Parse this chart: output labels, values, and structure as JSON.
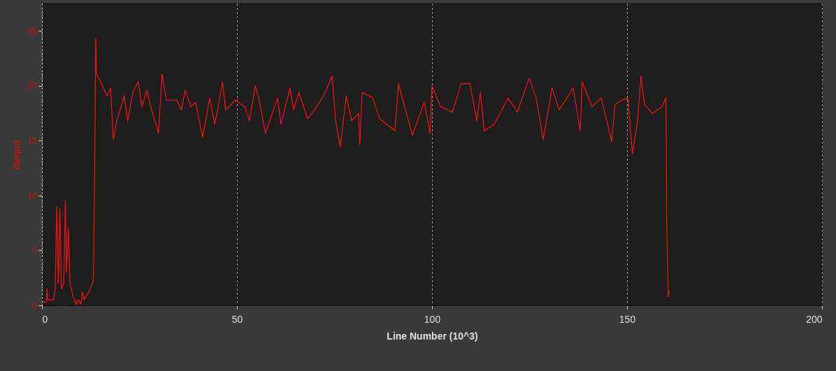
{
  "chart_data": {
    "type": "line",
    "xlabel": "Line Number (10^3)",
    "ylabel": "Output",
    "xlim": [
      0,
      200
    ],
    "xticks": [
      0,
      50,
      100,
      150,
      200
    ],
    "ylim": [
      0,
      27.5
    ],
    "yticks": [
      0,
      5,
      10,
      15,
      20,
      25
    ],
    "grid": "x",
    "marker": "none",
    "line_style": "solid",
    "series": [
      {
        "color": "#ff1010",
        "x": [
          0,
          1.2,
          1.3,
          1.5,
          3,
          3.4,
          3.8,
          4.2,
          4.6,
          5,
          5.6,
          6,
          6.3,
          6.8,
          7.2,
          8,
          8.8,
          9.4,
          10.0,
          10.4,
          10.8,
          12,
          13,
          13.2,
          13.5,
          13.8,
          14.0,
          16.7,
          17.6,
          18.3,
          19.2,
          21.1,
          22.0,
          23.3,
          24.7,
          25.6,
          26.9,
          28.1,
          29.9,
          30.8,
          31.9,
          34.6,
          35.8,
          36.7,
          38.2,
          39.4,
          41.2,
          43.0,
          44.3,
          45.2,
          46.3,
          47.1,
          49.6,
          52.0,
          53.2,
          54.7,
          55.6,
          57.3,
          58.6,
          60.4,
          61.3,
          63.6,
          64.5,
          65.9,
          68.1,
          69.9,
          72.2,
          74.4,
          75.3,
          76.5,
          78.0,
          79.4,
          81.2,
          81.5,
          82.1,
          84.8,
          86.6,
          90.5,
          91.4,
          93.2,
          95.0,
          98.0,
          99.5,
          100.0,
          102.2,
          105.2,
          107.5,
          109.7,
          111.5,
          112.4,
          113.4,
          116.0,
          119.5,
          121.9,
          124.9,
          126.7,
          128.5,
          130.8,
          132.6,
          136.2,
          138.0,
          138.5,
          141.0,
          143.4,
          146.1,
          146.9,
          148.7,
          150.2,
          151.4,
          152.7,
          153.6,
          154.5,
          156.5,
          159.0,
          160.0,
          160.2,
          160.6,
          160.8
        ],
        "values": [
          0.3,
          0.3,
          1.5,
          0.5,
          0.5,
          1.5,
          9.0,
          2,
          8.8,
          1.5,
          2,
          9.5,
          3,
          7,
          2,
          0.8,
          0.1,
          0.5,
          0.1,
          1.2,
          0.5,
          1.2,
          2.0,
          2.6,
          12,
          24.3,
          21.1,
          19.1,
          19.8,
          15.1,
          16.8,
          19.1,
          16.8,
          19.4,
          20.4,
          18.1,
          19.6,
          17.8,
          15.7,
          21.1,
          18.7,
          18.7,
          17.8,
          19.6,
          18.1,
          18.5,
          15.3,
          18.9,
          16.5,
          18.1,
          20.4,
          17.8,
          18.7,
          18.1,
          16.8,
          20.0,
          18.9,
          15.7,
          17.0,
          18.9,
          16.5,
          19.8,
          17.8,
          19.4,
          17.0,
          17.8,
          19.1,
          20.9,
          16.8,
          14.4,
          19.1,
          16.8,
          17.5,
          14.6,
          19.4,
          18.9,
          17.0,
          15.9,
          20.2,
          17.8,
          15.5,
          18.5,
          15.7,
          20.0,
          18.1,
          17.6,
          20.2,
          20.2,
          16.8,
          19.4,
          15.9,
          16.5,
          18.9,
          17.6,
          20.7,
          18.9,
          15.1,
          19.8,
          17.8,
          19.8,
          15.9,
          20.4,
          18.1,
          18.9,
          14.9,
          18.3,
          18.7,
          18.9,
          13.8,
          16.8,
          20.9,
          18.3,
          17.5,
          18.1,
          18.9,
          6.9,
          0.8,
          1.3
        ]
      }
    ]
  }
}
